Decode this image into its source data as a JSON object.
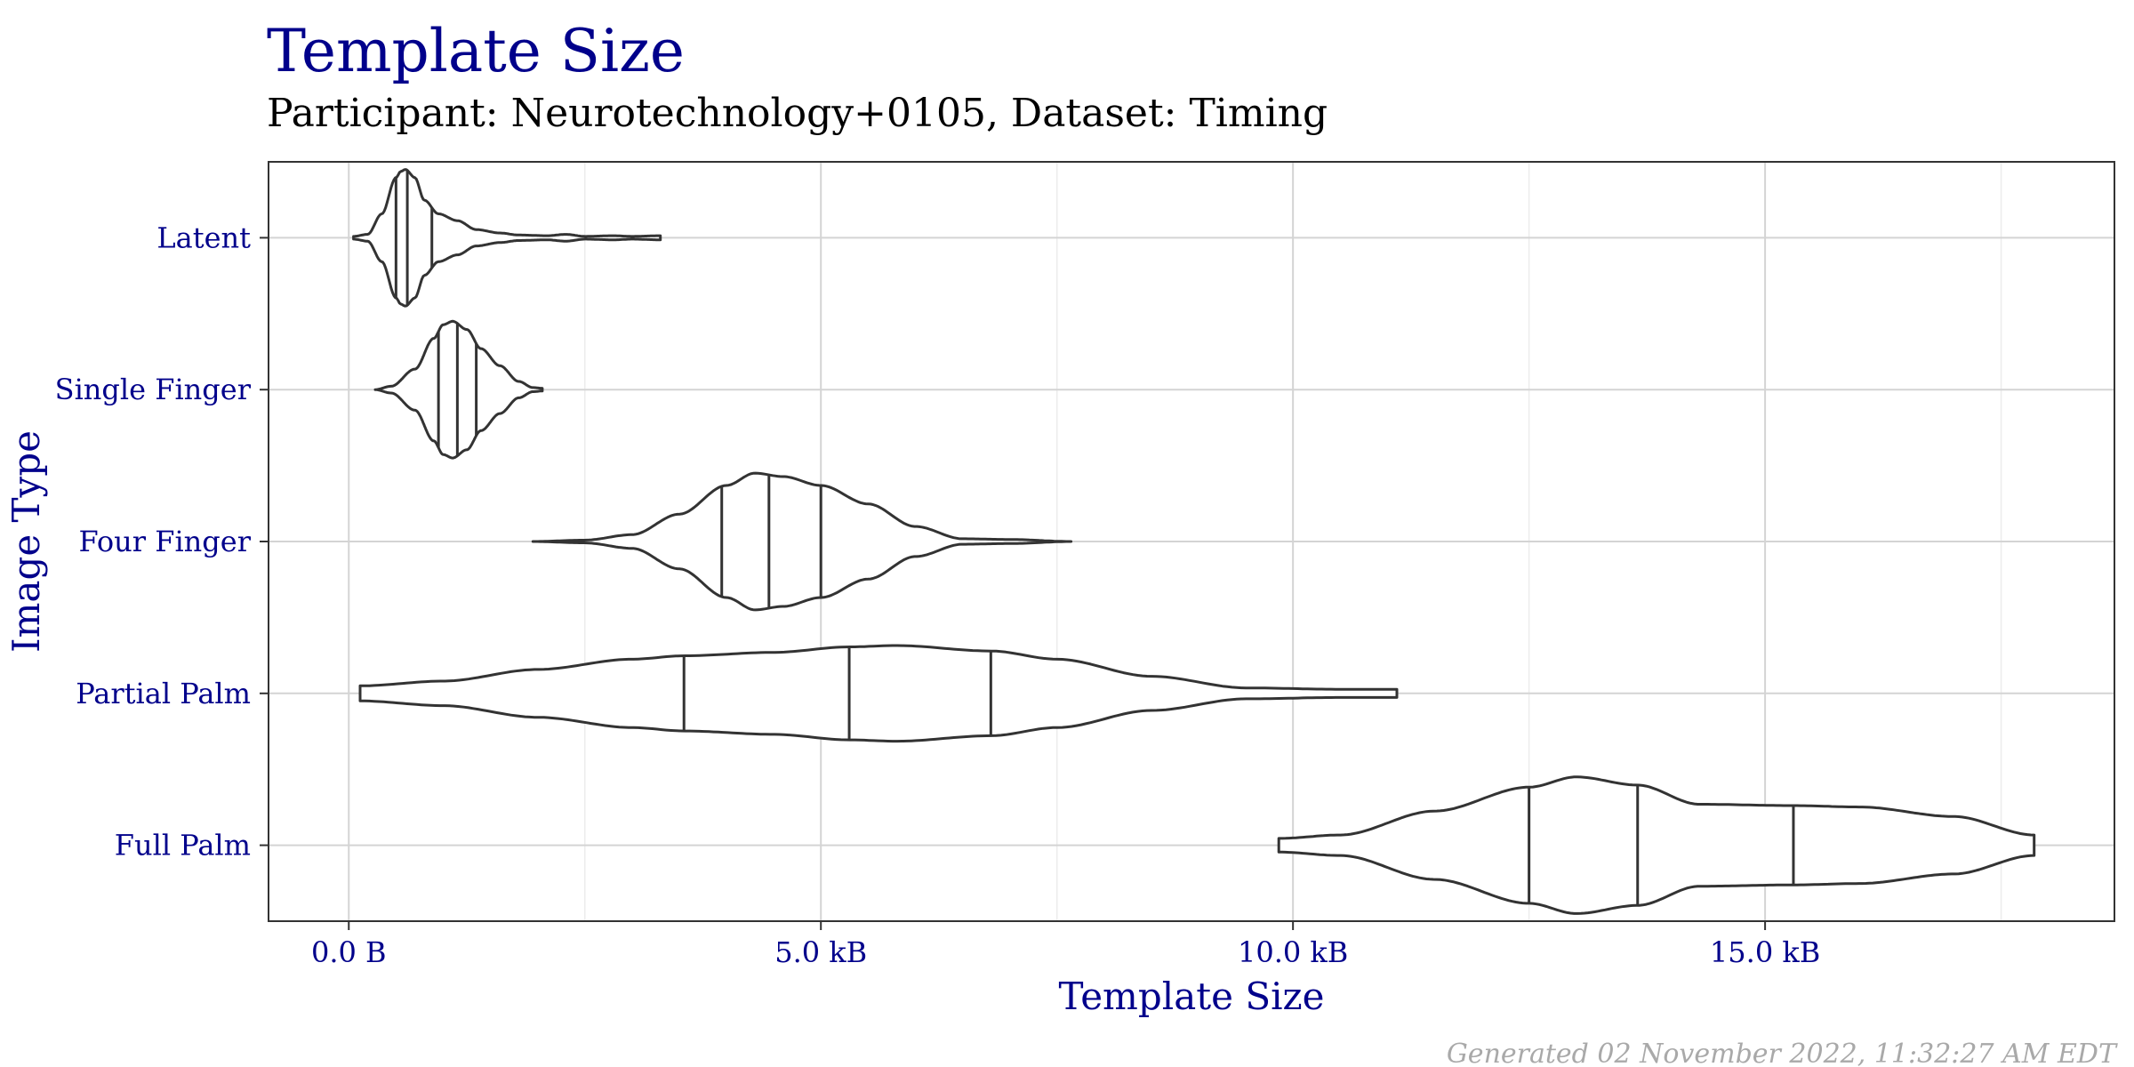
{
  "chart_data": {
    "type": "violin",
    "title": "Template Size",
    "subtitle": "Participant: Neurotechnology+0105, Dataset: Timing",
    "xlabel": "Template Size",
    "ylabel": "Image Type",
    "caption": "Generated 02 November 2022, 11:32:27 AM EDT",
    "xlim": [
      -0.85,
      18.7
    ],
    "x_ticks": [
      0,
      5,
      10,
      15
    ],
    "x_tick_labels": [
      "0.0 B",
      "5.0 kB",
      "10.0 kB",
      "15.0 kB"
    ],
    "x_unit": "kB",
    "grid": true,
    "colors": {
      "outline": "#333333",
      "text_accent": "#00008b",
      "grid_major": "#d4d4d4",
      "grid_minor": "#ececec",
      "caption": "#a9a9a9"
    },
    "categories": [
      "Latent",
      "Single Finger",
      "Four Finger",
      "Partial Palm",
      "Full Palm"
    ],
    "violins": [
      {
        "category": "Latent",
        "min": 0.05,
        "max": 3.3,
        "quantiles": [
          0.5,
          0.62,
          0.88
        ],
        "profile": [
          [
            0.05,
            0.02
          ],
          [
            0.2,
            0.05
          ],
          [
            0.35,
            0.35
          ],
          [
            0.5,
            0.88
          ],
          [
            0.55,
            0.97
          ],
          [
            0.6,
            1.0
          ],
          [
            0.7,
            0.88
          ],
          [
            0.8,
            0.55
          ],
          [
            0.95,
            0.35
          ],
          [
            1.15,
            0.25
          ],
          [
            1.35,
            0.12
          ],
          [
            1.6,
            0.07
          ],
          [
            1.8,
            0.04
          ],
          [
            2.1,
            0.03
          ],
          [
            2.3,
            0.05
          ],
          [
            2.5,
            0.02
          ],
          [
            2.8,
            0.03
          ],
          [
            3.0,
            0.02
          ],
          [
            3.3,
            0.03
          ]
        ]
      },
      {
        "category": "Single Finger",
        "min": 0.28,
        "max": 2.05,
        "quantiles": [
          0.95,
          1.15,
          1.35
        ],
        "profile": [
          [
            0.28,
            0.0
          ],
          [
            0.45,
            0.05
          ],
          [
            0.7,
            0.3
          ],
          [
            0.9,
            0.75
          ],
          [
            1.0,
            0.95
          ],
          [
            1.1,
            1.0
          ],
          [
            1.25,
            0.88
          ],
          [
            1.4,
            0.6
          ],
          [
            1.6,
            0.35
          ],
          [
            1.8,
            0.12
          ],
          [
            1.95,
            0.03
          ],
          [
            2.05,
            0.02
          ]
        ]
      },
      {
        "category": "Four Finger",
        "min": 1.95,
        "max": 7.65,
        "quantiles": [
          3.95,
          4.45,
          5.0
        ],
        "profile": [
          [
            1.95,
            0.0
          ],
          [
            2.5,
            0.02
          ],
          [
            3.0,
            0.1
          ],
          [
            3.5,
            0.4
          ],
          [
            4.0,
            0.82
          ],
          [
            4.3,
            1.0
          ],
          [
            4.6,
            0.95
          ],
          [
            5.0,
            0.82
          ],
          [
            5.5,
            0.55
          ],
          [
            6.0,
            0.22
          ],
          [
            6.5,
            0.04
          ],
          [
            7.0,
            0.03
          ],
          [
            7.65,
            0.0
          ]
        ]
      },
      {
        "category": "Partial Palm",
        "min": 0.12,
        "max": 11.1,
        "quantiles": [
          3.55,
          5.3,
          6.8
        ],
        "profile": [
          [
            0.12,
            0.11
          ],
          [
            1.0,
            0.18
          ],
          [
            2.0,
            0.35
          ],
          [
            3.0,
            0.5
          ],
          [
            3.55,
            0.55
          ],
          [
            4.5,
            0.6
          ],
          [
            5.3,
            0.68
          ],
          [
            5.8,
            0.7
          ],
          [
            6.8,
            0.62
          ],
          [
            7.5,
            0.5
          ],
          [
            8.5,
            0.25
          ],
          [
            9.5,
            0.08
          ],
          [
            10.5,
            0.06
          ],
          [
            11.1,
            0.06
          ]
        ]
      },
      {
        "category": "Full Palm",
        "min": 9.85,
        "max": 17.85,
        "quantiles": [
          12.5,
          13.65,
          15.3
        ],
        "profile": [
          [
            9.85,
            0.1
          ],
          [
            10.5,
            0.15
          ],
          [
            11.5,
            0.5
          ],
          [
            12.5,
            0.85
          ],
          [
            13.0,
            1.0
          ],
          [
            13.65,
            0.88
          ],
          [
            14.3,
            0.6
          ],
          [
            15.3,
            0.58
          ],
          [
            16.0,
            0.56
          ],
          [
            17.0,
            0.42
          ],
          [
            17.85,
            0.15
          ]
        ]
      }
    ]
  }
}
